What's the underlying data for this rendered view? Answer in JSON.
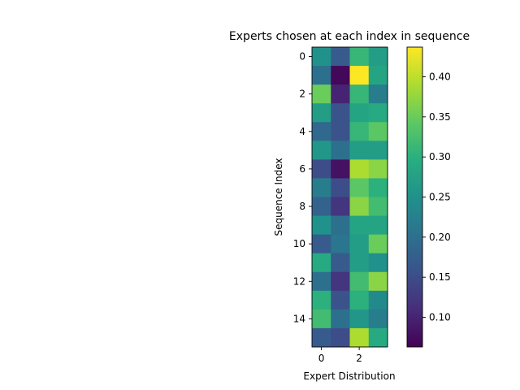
{
  "chart_data": {
    "type": "heatmap",
    "title": "Experts chosen at each index in sequence",
    "xlabel": "Expert Distribution",
    "ylabel": "Sequence Index",
    "x_ticks": [
      0,
      2
    ],
    "y_ticks": [
      0,
      2,
      4,
      6,
      8,
      10,
      12,
      14
    ],
    "columns": [
      0,
      1,
      2,
      3
    ],
    "rows": [
      0,
      1,
      2,
      3,
      4,
      5,
      6,
      7,
      8,
      9,
      10,
      11,
      12,
      13,
      14,
      15
    ],
    "values": [
      [
        0.25,
        0.17,
        0.31,
        0.27
      ],
      [
        0.2,
        0.07,
        0.44,
        0.28
      ],
      [
        0.35,
        0.1,
        0.31,
        0.22
      ],
      [
        0.27,
        0.16,
        0.28,
        0.29
      ],
      [
        0.19,
        0.16,
        0.31,
        0.34
      ],
      [
        0.26,
        0.2,
        0.27,
        0.27
      ],
      [
        0.15,
        0.08,
        0.39,
        0.37
      ],
      [
        0.22,
        0.15,
        0.34,
        0.3
      ],
      [
        0.18,
        0.12,
        0.37,
        0.32
      ],
      [
        0.25,
        0.2,
        0.28,
        0.28
      ],
      [
        0.17,
        0.21,
        0.27,
        0.35
      ],
      [
        0.29,
        0.17,
        0.27,
        0.25
      ],
      [
        0.2,
        0.12,
        0.32,
        0.37
      ],
      [
        0.3,
        0.16,
        0.3,
        0.24
      ],
      [
        0.32,
        0.2,
        0.26,
        0.22
      ],
      [
        0.17,
        0.15,
        0.39,
        0.29
      ]
    ],
    "colorbar": {
      "colormap": "viridis",
      "range": [
        0.063,
        0.437
      ],
      "ticks": [
        0.1,
        0.15,
        0.2,
        0.25,
        0.3,
        0.35,
        0.4
      ],
      "tick_labels": [
        "0.10",
        "0.15",
        "0.20",
        "0.25",
        "0.30",
        "0.35",
        "0.40"
      ]
    },
    "grid": false
  }
}
